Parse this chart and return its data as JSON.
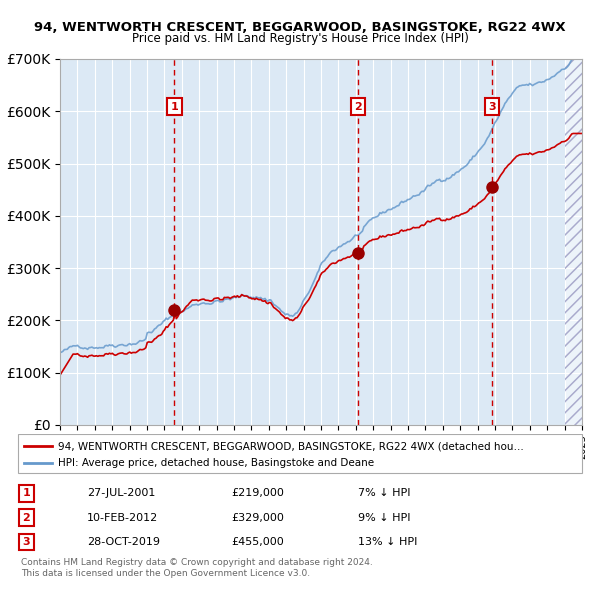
{
  "title1": "94, WENTWORTH CRESCENT, BEGGARWOOD, BASINGSTOKE, RG22 4WX",
  "title2": "Price paid vs. HM Land Registry's House Price Index (HPI)",
  "xlabel": "",
  "ylabel": "",
  "bg_color": "#dce9f5",
  "plot_bg": "#dce9f5",
  "hatch_color": "#c0d0e8",
  "red_line_color": "#cc0000",
  "blue_line_color": "#6699cc",
  "sale_marker_color": "#990000",
  "dashed_line_color": "#cc0000",
  "legend_label_red": "94, WENTWORTH CRESCENT, BEGGARWOOD, BASINGSTOKE, RG22 4WX (detached hou…",
  "legend_label_blue": "HPI: Average price, detached house, Basingstoke and Deane",
  "sales": [
    {
      "num": 1,
      "date_year": 2001.57,
      "price": 219000,
      "label": "1",
      "date_str": "27-JUL-2001",
      "pct": "7%"
    },
    {
      "num": 2,
      "date_year": 2012.12,
      "price": 329000,
      "label": "2",
      "date_str": "10-FEB-2012",
      "pct": "9%"
    },
    {
      "num": 3,
      "date_year": 2019.83,
      "price": 455000,
      "label": "3",
      "date_str": "28-OCT-2019",
      "pct": "13%"
    }
  ],
  "footer1": "Contains HM Land Registry data © Crown copyright and database right 2024.",
  "footer2": "This data is licensed under the Open Government Licence v3.0.",
  "xmin": 1995,
  "xmax": 2025,
  "ymin": 0,
  "ymax": 700000
}
